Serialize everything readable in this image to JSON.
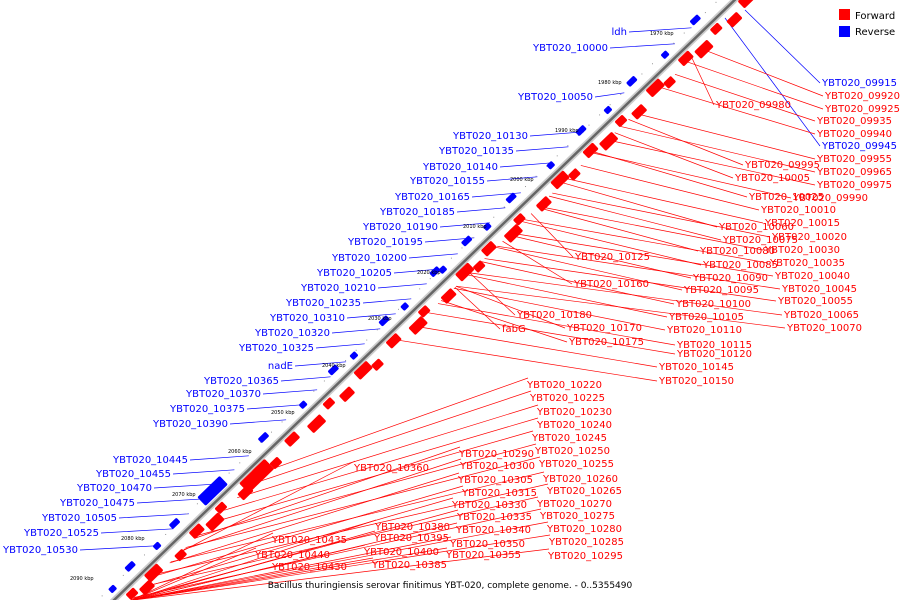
{
  "colors": {
    "forward": "#ff0000",
    "reverse": "#0000ff",
    "leader_forward": "#ff0000",
    "leader_reverse": "#0000ff",
    "backbone": "#666666"
  },
  "legend": [
    {
      "label": "Forward",
      "color": "#ff0000"
    },
    {
      "label": "Reverse",
      "color": "#0000ff"
    }
  ],
  "caption": "Bacillus thuringiensis serovar finitimus YBT-020, complete genome. - 0..5355490",
  "ticks": [
    "1970 kbp",
    "1980 kbp",
    "1990 kbp",
    "2000 kbp",
    "2010 kbp",
    "2020 kbp",
    "2030 kbp",
    "2040 kbp",
    "2050 kbp",
    "2060 kbp",
    "2070 kbp",
    "2080 kbp",
    "2090 kbp"
  ],
  "reverse_labels": [
    "ldh",
    "YBT020_10000",
    "YBT020_10050",
    "YBT020_10130",
    "YBT020_10135",
    "YBT020_10140",
    "YBT020_10155",
    "YBT020_10165",
    "YBT020_10185",
    "YBT020_10190",
    "YBT020_10195",
    "YBT020_10200",
    "YBT020_10205",
    "YBT020_10210",
    "YBT020_10235",
    "YBT020_10310",
    "YBT020_10320",
    "YBT020_10325",
    "nadE",
    "YBT020_10365",
    "YBT020_10370",
    "YBT020_10375",
    "YBT020_10390",
    "YBT020_10445",
    "YBT020_10455",
    "YBT020_10470",
    "YBT020_10475",
    "YBT020_10505",
    "YBT020_10525",
    "YBT020_10530"
  ],
  "right_reverse_labels": [
    "YBT020_09915",
    "YBT020_09945"
  ],
  "right_forward_labels": [
    "YBT020_09920",
    "YBT020_09925",
    "YBT020_09980",
    "YBT020_09935",
    "YBT020_09940",
    "YBT020_09955",
    "YBT020_09995",
    "YBT020_09965",
    "YBT020_10005",
    "YBT020_09975",
    "YBT020_10025",
    "YBT020_09990",
    "YBT020_10010",
    "YBT020_10060",
    "YBT020_10015",
    "YBT020_10075",
    "YBT020_10020",
    "YBT020_10080",
    "YBT020_10030",
    "YBT020_10125",
    "YBT020_10085",
    "YBT020_10035",
    "YBT020_10090",
    "YBT020_10040",
    "YBT020_10160",
    "YBT020_10095",
    "YBT020_10045",
    "YBT020_10100",
    "YBT020_10055",
    "YBT020_10180",
    "YBT020_10105",
    "YBT020_10065",
    "fabG",
    "YBT020_10170",
    "YBT020_10110",
    "YBT020_10070",
    "YBT020_10175",
    "YBT020_10115",
    "YBT020_10120",
    "YBT020_10145",
    "YBT020_10150"
  ],
  "lower_forward_labels": [
    "YBT020_10220",
    "YBT020_10225",
    "YBT020_10230",
    "YBT020_10240",
    "YBT020_10245",
    "YBT020_10290",
    "YBT020_10250",
    "YBT020_10360",
    "YBT020_10300",
    "YBT020_10255",
    "YBT020_10305",
    "YBT020_10260",
    "YBT020_10315",
    "YBT020_10265",
    "YBT020_10330",
    "YBT020_10270",
    "YBT020_10380",
    "YBT020_10335",
    "YBT020_10275",
    "YBT020_10435",
    "YBT020_10395",
    "YBT020_10340",
    "YBT020_10280",
    "YBT020_10440",
    "YBT020_10400",
    "YBT020_10350",
    "YBT020_10285",
    "YBT020_10430",
    "YBT020_10385",
    "YBT020_10355",
    "YBT020_10295"
  ]
}
